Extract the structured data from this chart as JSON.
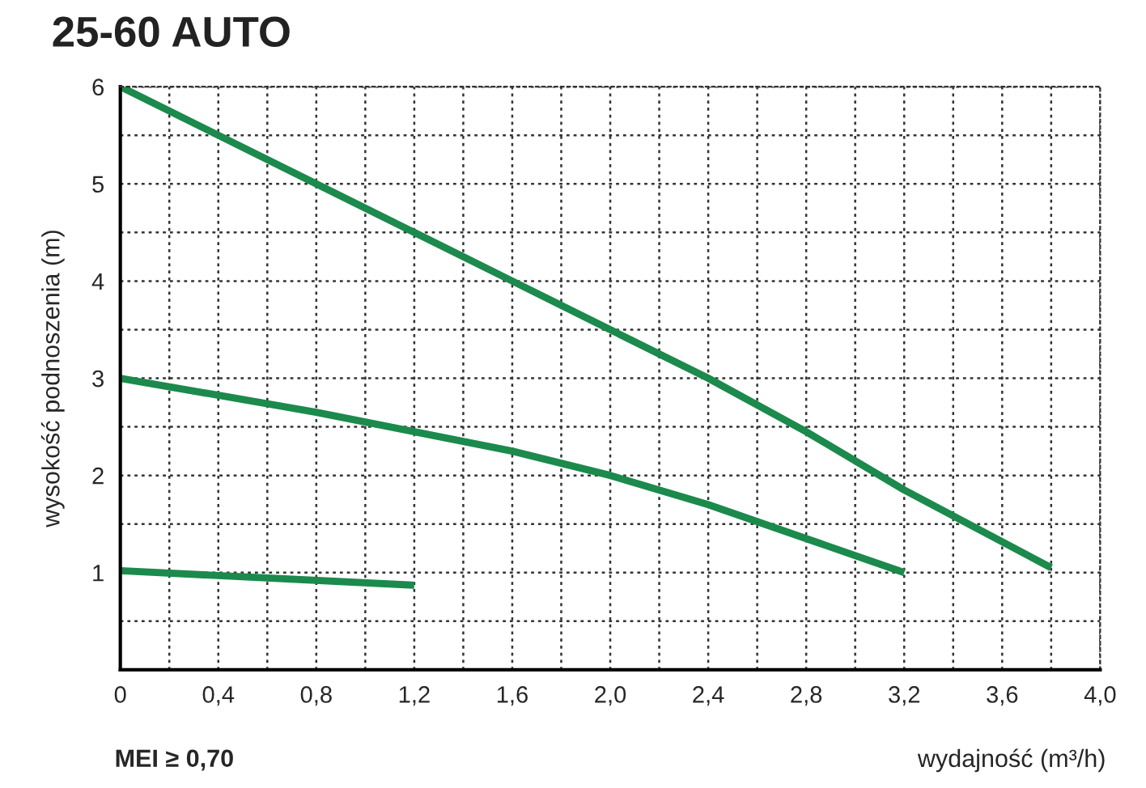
{
  "chart_data": {
    "type": "line",
    "title": "25-60 AUTO",
    "xlabel": "wydajność (m³/h)",
    "ylabel": "wysokość podnoszenia (m)",
    "annotations": [
      "MEI ≥ 0,70"
    ],
    "series": [
      {
        "color": "#1b8a4c",
        "x": [
          0,
          0.8,
          1.2,
          1.6,
          2.0,
          2.4,
          2.8,
          3.2,
          3.8
        ],
        "values": [
          6,
          5.0,
          4.5,
          4.0,
          3.5,
          3.0,
          2.45,
          1.85,
          1.05
        ]
      },
      {
        "color": "#1b8a4c",
        "x": [
          0,
          0.8,
          1.2,
          1.6,
          2.0,
          2.4,
          2.8,
          3.2
        ],
        "values": [
          3,
          2.65,
          2.45,
          2.25,
          2.0,
          1.7,
          1.35,
          1.0
        ]
      },
      {
        "color": "#1b8a4c",
        "x": [
          0,
          1.2
        ],
        "values": [
          1.02,
          0.87
        ]
      }
    ],
    "xlim": [
      0,
      4
    ],
    "ylim": [
      0,
      6
    ],
    "xticks": [
      0,
      {
        "value": 0.2,
        "label": null
      },
      {
        "value": 0.4,
        "label": "0,4"
      },
      {
        "value": 0.6,
        "label": null
      },
      {
        "value": 0.8,
        "label": "0,8"
      },
      {
        "value": 1.0,
        "label": null
      },
      {
        "value": 1.2,
        "label": "1,2"
      },
      {
        "value": 1.4,
        "label": null
      },
      {
        "value": 1.6,
        "label": "1,6"
      },
      {
        "value": 1.8,
        "label": null
      },
      {
        "value": 2.0,
        "label": "2,0"
      },
      {
        "value": 2.2,
        "label": null
      },
      {
        "value": 2.4,
        "label": "2,4"
      },
      {
        "value": 2.6,
        "label": null
      },
      {
        "value": 2.8,
        "label": "2,8"
      },
      {
        "value": 3.0,
        "label": null
      },
      {
        "value": 3.2,
        "label": "3,2"
      },
      {
        "value": 3.4,
        "label": null
      },
      {
        "value": 3.6,
        "label": "3,6"
      },
      {
        "value": 3.8,
        "label": null
      },
      {
        "value": 4.0,
        "label": "4,0"
      }
    ],
    "yticks": [
      {
        "value": 0,
        "label": null
      },
      {
        "value": 0.5,
        "label": null
      },
      1,
      {
        "value": 1.5,
        "label": null
      },
      2,
      {
        "value": 2.5,
        "label": null
      },
      3,
      {
        "value": 3.5,
        "label": null
      },
      4,
      {
        "value": 4.5,
        "label": null
      },
      5,
      {
        "value": 5.5,
        "label": null
      },
      6
    ],
    "grid": true,
    "line_style": "solid",
    "marker": "none"
  }
}
